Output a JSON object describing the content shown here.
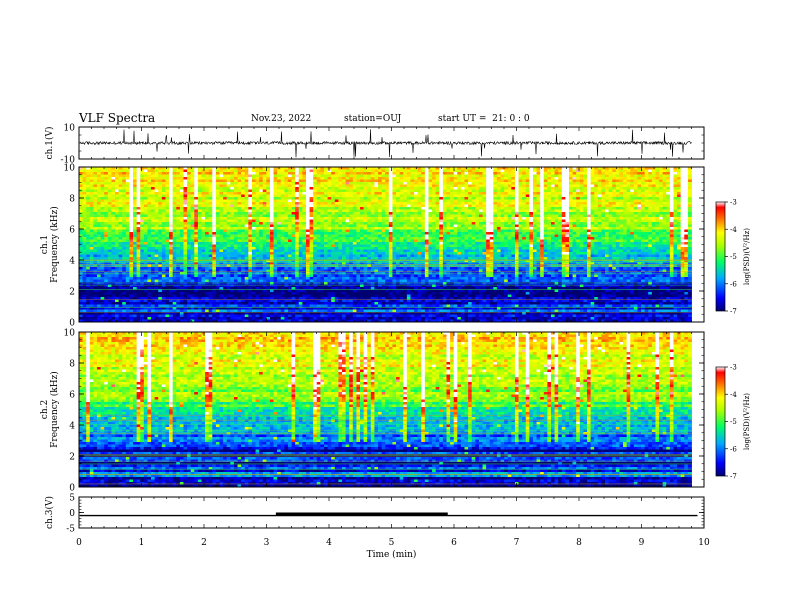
{
  "header": {
    "title": "VLF Spectra",
    "date": "Nov.23, 2022",
    "station": "station=OUJ",
    "start": "start UT =  21: 0 : 0"
  },
  "chart_data": [
    {
      "type": "line",
      "name": "ch1-waveform",
      "ylabel": "ch.1(V)",
      "ylim": [
        -10,
        10
      ],
      "yticks": [
        10,
        -10
      ],
      "xlim": [
        0,
        10
      ],
      "x_end": 9.8,
      "baseline": 0
    },
    {
      "type": "heatmap",
      "name": "ch1-spectrogram",
      "ylabel": "ch.1\nFrequency (kHz)",
      "ylim": [
        0,
        10
      ],
      "yticks": [
        0,
        2,
        4,
        6,
        8,
        10
      ],
      "xlim": [
        0,
        10
      ],
      "x_end": 9.8
    },
    {
      "type": "heatmap",
      "name": "ch2-spectrogram",
      "ylabel": "ch.2\nFrequency (kHz)",
      "ylim": [
        0,
        10
      ],
      "yticks": [
        0,
        2,
        4,
        6,
        8,
        10
      ],
      "xlim": [
        0,
        10
      ],
      "x_end": 9.8
    },
    {
      "type": "line",
      "name": "ch3-signal",
      "ylabel": "ch.3(V)",
      "ylim": [
        -5,
        5
      ],
      "yticks": [
        5,
        0,
        -5
      ],
      "xlim": [
        0,
        10
      ],
      "xticks": [
        0,
        1,
        2,
        3,
        4,
        5,
        6,
        7,
        8,
        9,
        10
      ],
      "xlabel": "Time (min)",
      "level": -1,
      "thick_segment": [
        3.15,
        5.9
      ],
      "x_end": 9.8
    }
  ],
  "colorbar": {
    "label": "log(PSD)(V²/Hz)",
    "ticks": [
      -3,
      -4,
      -5,
      -6,
      -7
    ],
    "range": [
      -7,
      -3
    ]
  }
}
